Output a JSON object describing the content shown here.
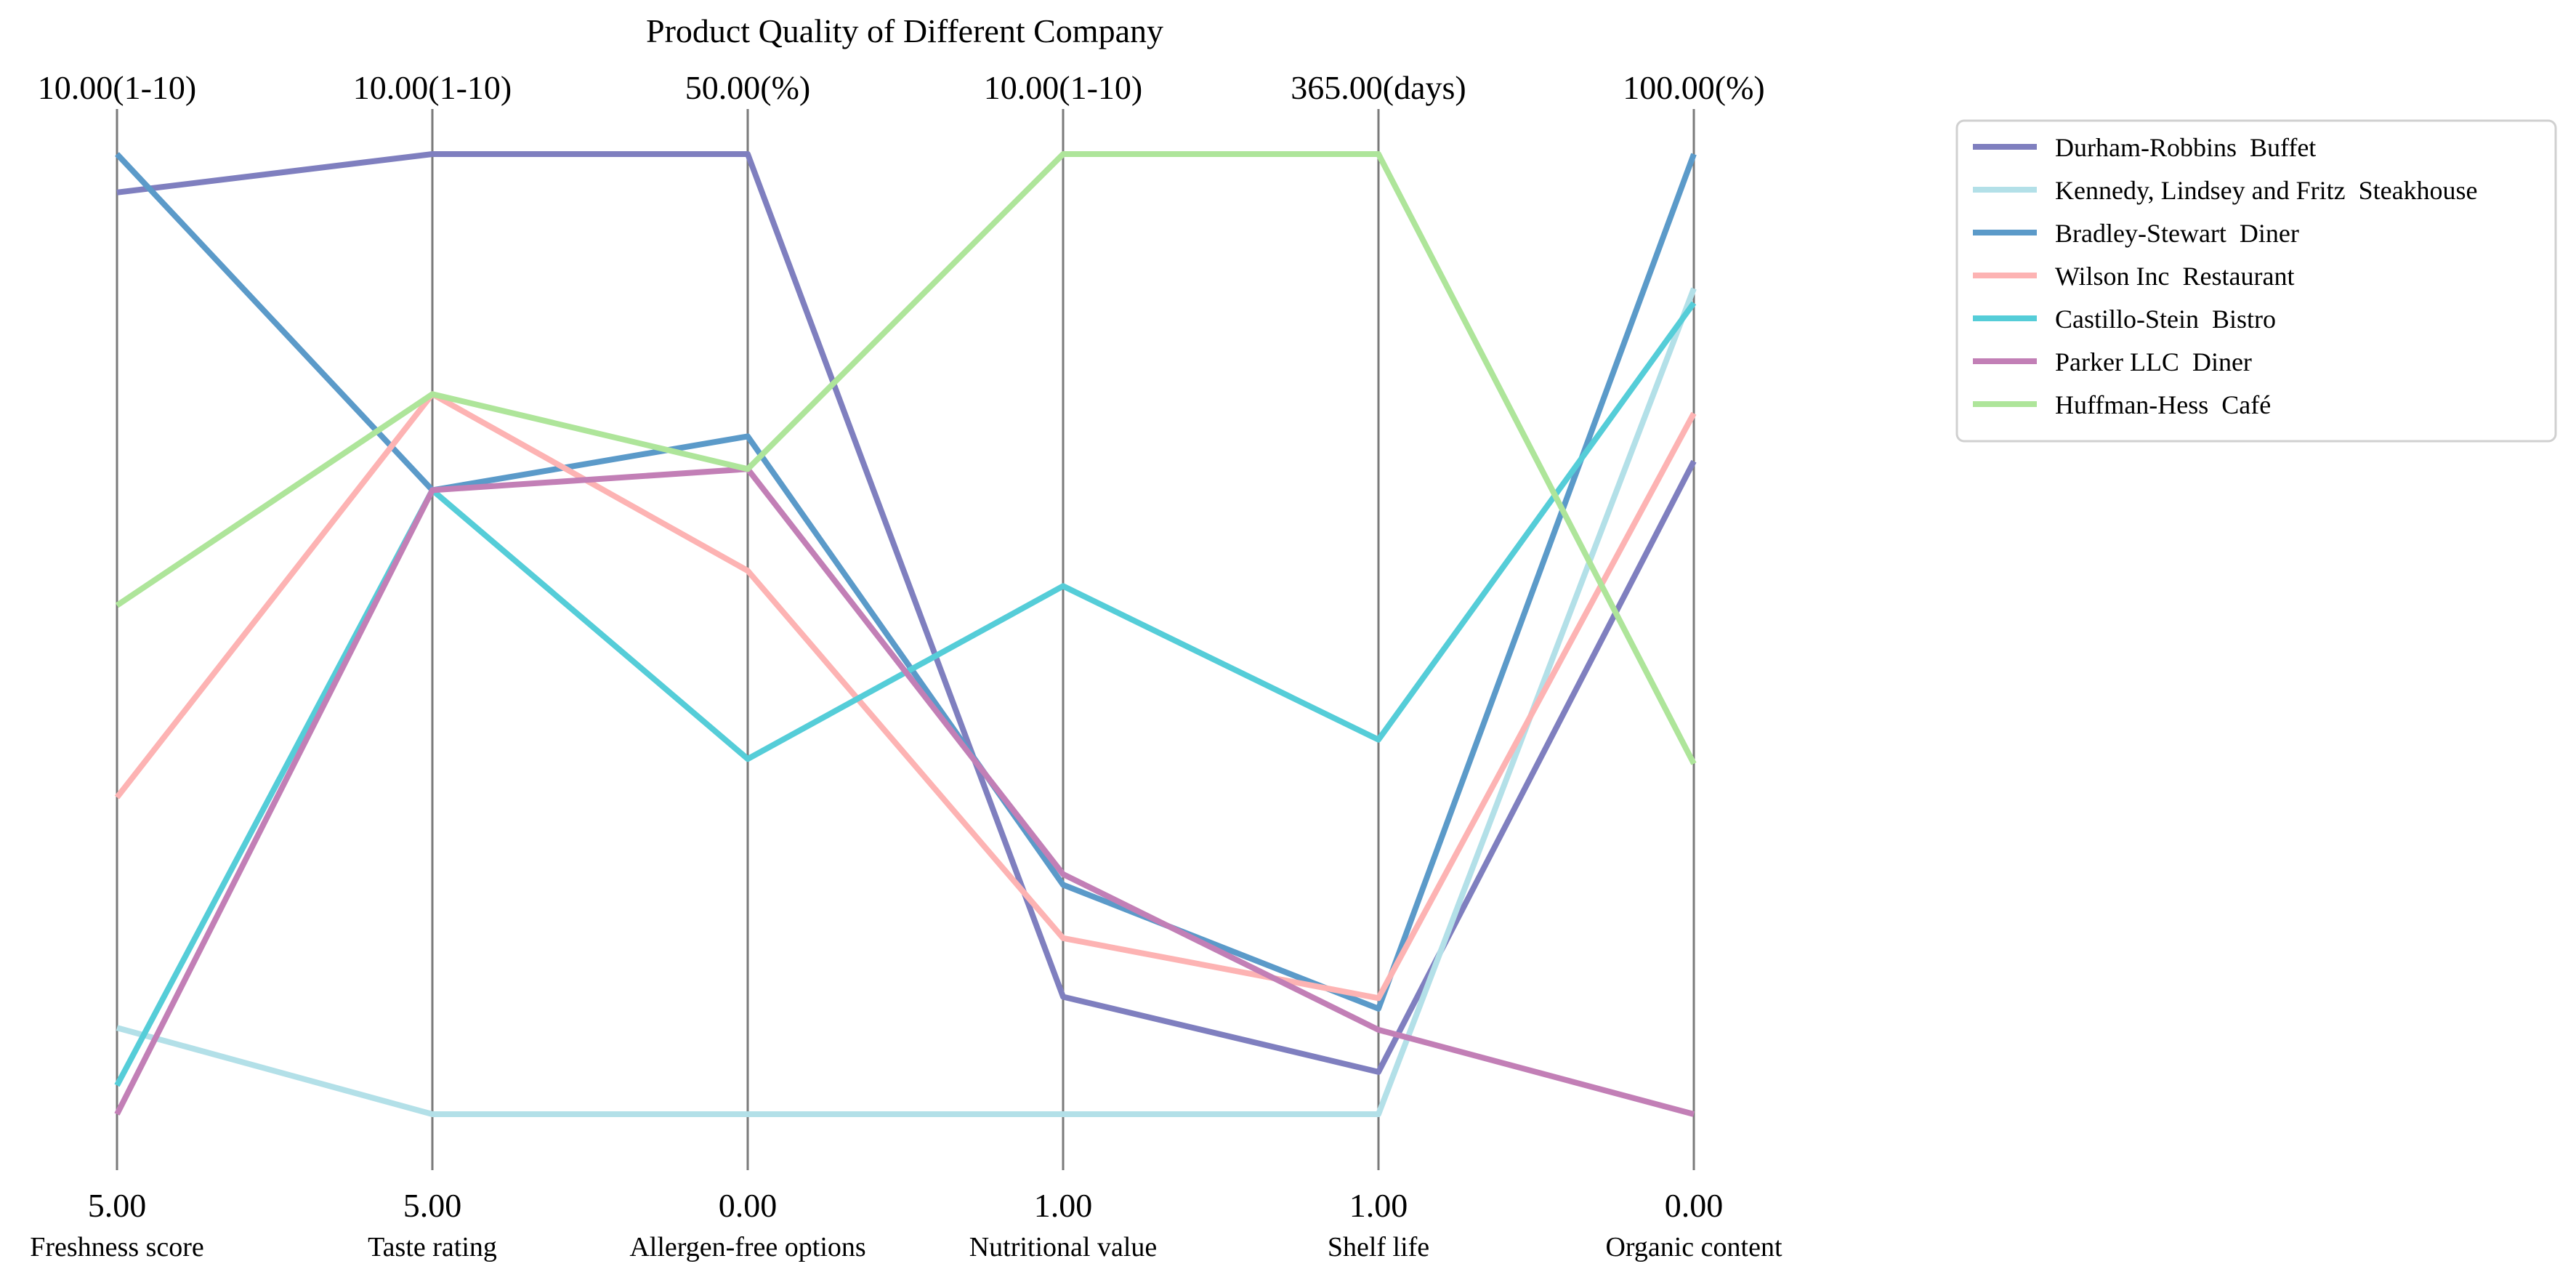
{
  "chart_data": {
    "type": "parallel-coordinates",
    "title": "Product Quality of Different Company",
    "axes": [
      {
        "label": "Freshness score",
        "min": 5,
        "max": 10,
        "min_label": "5.00",
        "max_label": "10.00(1-10)"
      },
      {
        "label": "Taste rating",
        "min": 5,
        "max": 10,
        "min_label": "5.00",
        "max_label": "10.00(1-10)"
      },
      {
        "label": "Allergen-free options",
        "min": 0,
        "max": 50,
        "min_label": "0.00",
        "max_label": "50.00(%)"
      },
      {
        "label": "Nutritional value",
        "min": 1,
        "max": 10,
        "min_label": "1.00",
        "max_label": "10.00(1-10)"
      },
      {
        "label": "Shelf life",
        "min": 1,
        "max": 365,
        "min_label": "1.00",
        "max_label": "365.00(days)"
      },
      {
        "label": "Organic content",
        "min": 0,
        "max": 100,
        "min_label": "0.00",
        "max_label": "100.00(%)"
      }
    ],
    "series": [
      {
        "name": "Durham-Robbins  Buffet",
        "color": "#7f7fbf",
        "values": [
          9.8,
          10.0,
          50.0,
          2.1,
          17.0,
          68.0
        ]
      },
      {
        "name": "Kennedy, Lindsey and Fritz  Steakhouse",
        "color": "#b3e0e8",
        "values": [
          5.45,
          5.0,
          0.0,
          1.0,
          1.0,
          86.0
        ]
      },
      {
        "name": "Bradley-Stewart  Diner",
        "color": "#5b9ac9",
        "values": [
          10.0,
          8.25,
          35.3,
          3.15,
          41.0,
          100.0
        ]
      },
      {
        "name": "Wilson Inc  Restaurant",
        "color": "#fdb3b3",
        "values": [
          6.65,
          8.75,
          28.3,
          2.65,
          45.0,
          73.0
        ]
      },
      {
        "name": "Castillo-Stein  Bistro",
        "color": "#55cdd8",
        "values": [
          5.15,
          8.25,
          18.5,
          5.95,
          143.0,
          84.5
        ]
      },
      {
        "name": "Parker LLC  Diner",
        "color": "#c27fb6",
        "values": [
          5.0,
          8.25,
          33.6,
          3.25,
          33.0,
          0.0
        ]
      },
      {
        "name": "Huffman-Hess  Café",
        "color": "#aee59a",
        "values": [
          7.65,
          8.75,
          33.6,
          10.0,
          365.0,
          36.5
        ]
      }
    ],
    "legend_position": "top-right"
  }
}
